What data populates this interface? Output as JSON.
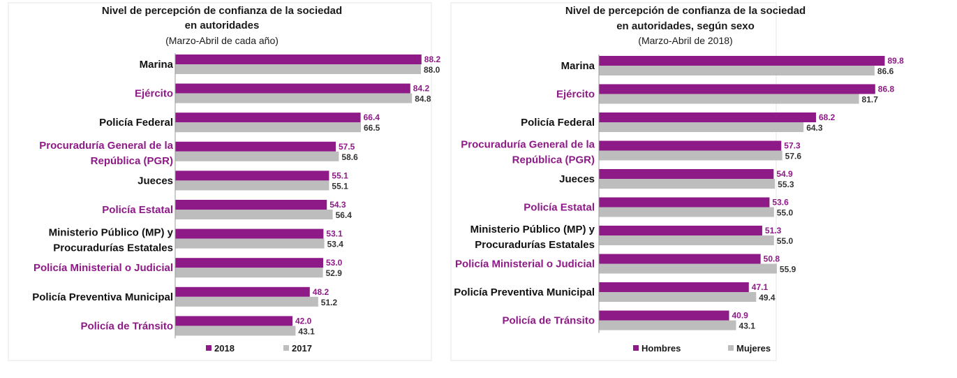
{
  "colors": {
    "primary": "#8E1A87",
    "secondary": "#BDBDBD",
    "label_dark": "#111111",
    "secondary_value": "#333333"
  },
  "chart_data": [
    {
      "type": "bar",
      "orientation": "horizontal",
      "title_lines": [
        "Nivel de percepción de confianza de la sociedad",
        "en autoridades"
      ],
      "subtitle": "(Marzo-Abril de cada año)",
      "categories": [
        [
          "Marina"
        ],
        [
          "Ejército"
        ],
        [
          "Policía Federal"
        ],
        [
          "Procuraduría General de la",
          "República (PGR)"
        ],
        [
          "Jueces"
        ],
        [
          "Policía Estatal"
        ],
        [
          "Ministerio Público (MP) y",
          "Procuradurías Estatales"
        ],
        [
          "Policía Ministerial o Judicial"
        ],
        [
          "Policía Preventiva Municipal"
        ],
        [
          "Policía de Tránsito"
        ]
      ],
      "category_highlight": [
        false,
        true,
        false,
        true,
        false,
        true,
        false,
        true,
        false,
        true
      ],
      "series": [
        {
          "name": "2018",
          "values": [
            88.2,
            84.2,
            66.4,
            57.5,
            55.1,
            54.3,
            53.1,
            53.0,
            48.2,
            42.0
          ]
        },
        {
          "name": "2017",
          "values": [
            88.0,
            84.8,
            66.5,
            58.6,
            55.1,
            56.4,
            53.4,
            52.9,
            51.2,
            43.1
          ]
        }
      ],
      "legend_position": "bottom"
    },
    {
      "type": "bar",
      "orientation": "horizontal",
      "title_lines": [
        "Nivel de percepción de confianza de la sociedad",
        "en autoridades, según sexo"
      ],
      "subtitle": "(Marzo-Abril de 2018)",
      "categories": [
        [
          "Marina"
        ],
        [
          "Ejército"
        ],
        [
          "Policía Federal"
        ],
        [
          "Procuraduría General de la",
          "República (PGR)"
        ],
        [
          "Jueces"
        ],
        [
          "Policía Estatal"
        ],
        [
          "Ministerio Público (MP) y",
          "Procuradurías Estatales"
        ],
        [
          "Policía Ministerial o Judicial"
        ],
        [
          "Policía Preventiva Municipal"
        ],
        [
          "Policía de Tránsito"
        ]
      ],
      "category_highlight": [
        false,
        true,
        false,
        true,
        false,
        true,
        false,
        true,
        false,
        true
      ],
      "series": [
        {
          "name": "Hombres",
          "values": [
            89.8,
            86.8,
            68.2,
            57.3,
            54.9,
            53.6,
            51.3,
            50.8,
            47.1,
            40.9
          ]
        },
        {
          "name": "Mujeres",
          "values": [
            86.6,
            81.7,
            64.3,
            57.6,
            55.3,
            55.0,
            55.0,
            55.9,
            49.4,
            43.1
          ]
        }
      ],
      "legend_position": "bottom"
    }
  ]
}
